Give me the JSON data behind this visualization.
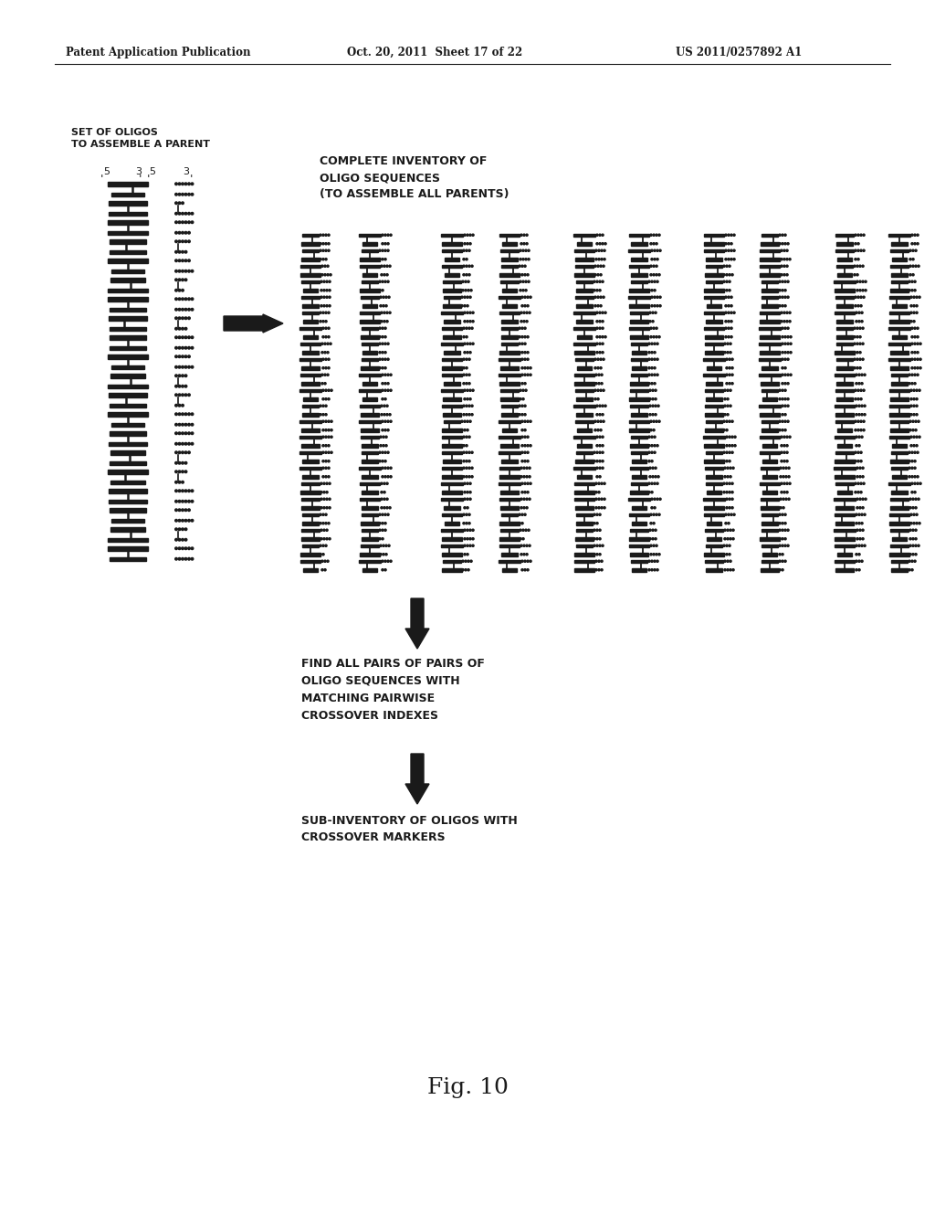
{
  "header_left": "Patent Application Publication",
  "header_mid": "Oct. 20, 2011  Sheet 17 of 22",
  "header_right": "US 2011/0257892 A1",
  "label_set_of_oligos_line1": "SET OF OLIGOS",
  "label_set_of_oligos_line2": "TO ASSEMBLE A PARENT",
  "label_complete_inventory": "COMPLETE INVENTORY OF\nOLIGO SEQUENCES\n(TO ASSEMBLE ALL PARENTS)",
  "label_find_pairs_line1": "FIND ALL PAIRS OF PAIRS OF",
  "label_find_pairs_line2": "OLIGO SEQUENCES WITH",
  "label_find_pairs_line3": "MATCHING PAIRWISE",
  "label_find_pairs_line4": "CROSSOVER INDEXES",
  "label_sub_inventory_line1": "SUB-INVENTORY OF OLIGOS WITH",
  "label_sub_inventory_line2": "CROSSOVER MARKERS",
  "fig_label": "Fig. 10",
  "bg_color": "#ffffff",
  "text_color": "#1a1a1a"
}
